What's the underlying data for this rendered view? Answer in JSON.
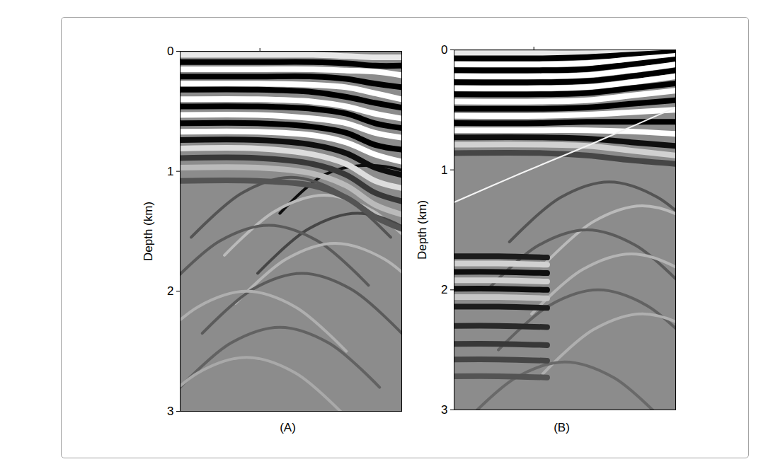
{
  "chart_data": [
    {
      "type": "seismic_section",
      "caption": "(A)",
      "ylabel": "Depth (km)",
      "xlim": [
        0,
        1
      ],
      "xticks": [
        0.36
      ],
      "ylim": [
        0,
        3
      ],
      "yticks": [
        0,
        1,
        2,
        3
      ],
      "tick_labels": "y",
      "reflectors": [
        {
          "x": [
            0,
            0.35,
            0.6,
            0.75,
            0.88,
            1
          ],
          "depth": [
            0.03,
            0.03,
            0.03,
            0.04,
            0.05,
            0.05
          ],
          "amplitude": -0.8
        },
        {
          "x": [
            0,
            0.35,
            0.6,
            0.75,
            0.88,
            1
          ],
          "depth": [
            0.09,
            0.09,
            0.09,
            0.1,
            0.12,
            0.12
          ],
          "amplitude": 1
        },
        {
          "x": [
            0,
            0.35,
            0.6,
            0.75,
            0.88,
            1
          ],
          "depth": [
            0.15,
            0.15,
            0.15,
            0.16,
            0.17,
            0.2
          ],
          "amplitude": -1
        },
        {
          "x": [
            0,
            0.35,
            0.6,
            0.75,
            0.88,
            1
          ],
          "depth": [
            0.21,
            0.21,
            0.21,
            0.23,
            0.27,
            0.3
          ],
          "amplitude": 1
        },
        {
          "x": [
            0,
            0.35,
            0.6,
            0.75,
            0.88,
            1
          ],
          "depth": [
            0.27,
            0.27,
            0.28,
            0.3,
            0.35,
            0.4
          ],
          "amplitude": -1
        },
        {
          "x": [
            0,
            0.35,
            0.6,
            0.75,
            0.88,
            1
          ],
          "depth": [
            0.32,
            0.32,
            0.34,
            0.38,
            0.43,
            0.47
          ],
          "amplitude": 1
        },
        {
          "x": [
            0,
            0.35,
            0.6,
            0.75,
            0.88,
            1
          ],
          "depth": [
            0.4,
            0.4,
            0.42,
            0.46,
            0.52,
            0.56
          ],
          "amplitude": -1
        },
        {
          "x": [
            0,
            0.35,
            0.6,
            0.75,
            0.88,
            1
          ],
          "depth": [
            0.46,
            0.46,
            0.48,
            0.52,
            0.6,
            0.64
          ],
          "amplitude": 1
        },
        {
          "x": [
            0,
            0.35,
            0.6,
            0.75,
            0.88,
            1
          ],
          "depth": [
            0.53,
            0.53,
            0.56,
            0.6,
            0.68,
            0.72
          ],
          "amplitude": -1
        },
        {
          "x": [
            0,
            0.35,
            0.6,
            0.75,
            0.88,
            1
          ],
          "depth": [
            0.6,
            0.6,
            0.63,
            0.68,
            0.78,
            0.82
          ],
          "amplitude": 1
        },
        {
          "x": [
            0,
            0.35,
            0.6,
            0.75,
            0.88,
            1
          ],
          "depth": [
            0.67,
            0.67,
            0.7,
            0.76,
            0.86,
            0.92
          ],
          "amplitude": -1
        },
        {
          "x": [
            0,
            0.35,
            0.6,
            0.75,
            0.88,
            1
          ],
          "depth": [
            0.74,
            0.74,
            0.78,
            0.85,
            0.97,
            1.03
          ],
          "amplitude": 0.9
        },
        {
          "x": [
            0,
            0.35,
            0.6,
            0.75,
            0.88,
            1
          ],
          "depth": [
            0.81,
            0.81,
            0.86,
            0.94,
            1.08,
            1.14
          ],
          "amplitude": -0.7
        },
        {
          "x": [
            0,
            0.35,
            0.6,
            0.75,
            0.88,
            1
          ],
          "depth": [
            0.89,
            0.89,
            0.94,
            1.03,
            1.18,
            1.25
          ],
          "amplitude": 0.6
        },
        {
          "x": [
            0,
            0.35,
            0.6,
            0.75,
            0.88,
            1
          ],
          "depth": [
            0.97,
            0.97,
            1.02,
            1.12,
            1.28,
            1.36
          ],
          "amplitude": -0.4
        },
        {
          "x": [
            0,
            0.35,
            0.6,
            0.75,
            0.88,
            1
          ],
          "depth": [
            1.08,
            1.08,
            1.12,
            1.22,
            1.38,
            1.48
          ],
          "amplitude": 0.4
        }
      ],
      "diffractions": [
        {
          "x": [
            0.45,
            0.65,
            0.85,
            1.05,
            1.25
          ],
          "depth": [
            1.35,
            1.03,
            0.95,
            1.03,
            1.35
          ],
          "amplitude": 0.9
        },
        {
          "x": [
            0.05,
            0.28,
            0.5,
            0.72,
            0.95
          ],
          "depth": [
            1.55,
            1.18,
            1.05,
            1.18,
            1.55
          ],
          "amplitude": 0.4
        },
        {
          "x": [
            0.2,
            0.43,
            0.65,
            0.87,
            1.1
          ],
          "depth": [
            1.7,
            1.33,
            1.2,
            1.33,
            1.7
          ],
          "amplitude": -0.4
        },
        {
          "x": [
            0.35,
            0.58,
            0.8,
            1.02,
            1.25
          ],
          "depth": [
            1.85,
            1.48,
            1.35,
            1.48,
            1.85
          ],
          "amplitude": 0.5
        },
        {
          "x": [
            -0.05,
            0.18,
            0.4,
            0.62,
            0.85
          ],
          "depth": [
            1.95,
            1.58,
            1.45,
            1.58,
            1.95
          ],
          "amplitude": 0.35
        },
        {
          "x": [
            0.25,
            0.48,
            0.7,
            0.92,
            1.15
          ],
          "depth": [
            2.1,
            1.73,
            1.6,
            1.73,
            2.1
          ],
          "amplitude": -0.35
        },
        {
          "x": [
            0.1,
            0.33,
            0.55,
            0.77,
            1.0
          ],
          "depth": [
            2.35,
            1.98,
            1.85,
            1.98,
            2.35
          ],
          "amplitude": 0.35
        },
        {
          "x": [
            -0.15,
            0.08,
            0.3,
            0.52,
            0.75
          ],
          "depth": [
            2.5,
            2.13,
            2.0,
            2.13,
            2.5
          ],
          "amplitude": -0.3
        },
        {
          "x": [
            0.0,
            0.23,
            0.45,
            0.67,
            0.9
          ],
          "depth": [
            2.8,
            2.43,
            2.3,
            2.43,
            2.8
          ],
          "amplitude": 0.3
        },
        {
          "x": [
            -0.15,
            0.08,
            0.3,
            0.52,
            0.75
          ],
          "depth": [
            3.05,
            2.68,
            2.55,
            2.68,
            3.05
          ],
          "amplitude": -0.25
        }
      ],
      "crossing_events": []
    },
    {
      "type": "seismic_section",
      "caption": "(B)",
      "ylabel": "Depth (km)",
      "xlim": [
        0,
        1
      ],
      "xticks": [
        0.36
      ],
      "ylim": [
        0,
        3
      ],
      "yticks": [
        0,
        1,
        2,
        3
      ],
      "tick_labels": "y",
      "reflectors": [
        {
          "x": [
            0,
            0.4,
            0.6,
            0.8,
            1
          ],
          "depth": [
            0.03,
            0.03,
            0.03,
            0.02,
            0.01
          ],
          "amplitude": -0.8
        },
        {
          "x": [
            0,
            0.4,
            0.6,
            0.8,
            1
          ],
          "depth": [
            0.07,
            0.07,
            0.06,
            0.04,
            0.02
          ],
          "amplitude": 1
        },
        {
          "x": [
            0,
            0.4,
            0.6,
            0.8,
            1
          ],
          "depth": [
            0.12,
            0.12,
            0.11,
            0.08,
            0.05
          ],
          "amplitude": -1
        },
        {
          "x": [
            0,
            0.4,
            0.6,
            0.8,
            1
          ],
          "depth": [
            0.17,
            0.17,
            0.16,
            0.12,
            0.08
          ],
          "amplitude": 1
        },
        {
          "x": [
            0,
            0.4,
            0.6,
            0.8,
            1
          ],
          "depth": [
            0.22,
            0.22,
            0.21,
            0.17,
            0.12
          ],
          "amplitude": -1
        },
        {
          "x": [
            0,
            0.4,
            0.6,
            0.8,
            1
          ],
          "depth": [
            0.27,
            0.27,
            0.26,
            0.22,
            0.17
          ],
          "amplitude": 1
        },
        {
          "x": [
            0,
            0.4,
            0.6,
            0.8,
            1
          ],
          "depth": [
            0.32,
            0.32,
            0.31,
            0.27,
            0.22
          ],
          "amplitude": -1
        },
        {
          "x": [
            0,
            0.4,
            0.6,
            0.8,
            1
          ],
          "depth": [
            0.37,
            0.37,
            0.36,
            0.32,
            0.28
          ],
          "amplitude": 1
        },
        {
          "x": [
            0,
            0.4,
            0.6,
            0.8,
            1
          ],
          "depth": [
            0.43,
            0.43,
            0.42,
            0.38,
            0.34
          ],
          "amplitude": -1
        },
        {
          "x": [
            0,
            0.4,
            0.6,
            0.8,
            1
          ],
          "depth": [
            0.49,
            0.49,
            0.48,
            0.45,
            0.42
          ],
          "amplitude": 1
        },
        {
          "x": [
            0,
            0.4,
            0.6,
            0.8,
            1
          ],
          "depth": [
            0.55,
            0.55,
            0.54,
            0.52,
            0.5
          ],
          "amplitude": -1
        },
        {
          "x": [
            0,
            0.4,
            0.6,
            0.8,
            1
          ],
          "depth": [
            0.61,
            0.61,
            0.6,
            0.6,
            0.6
          ],
          "amplitude": 1
        },
        {
          "x": [
            0,
            0.4,
            0.6,
            0.8,
            1
          ],
          "depth": [
            0.67,
            0.67,
            0.67,
            0.68,
            0.7
          ],
          "amplitude": -1
        },
        {
          "x": [
            0,
            0.4,
            0.6,
            0.8,
            1
          ],
          "depth": [
            0.73,
            0.73,
            0.74,
            0.77,
            0.8
          ],
          "amplitude": 0.9
        },
        {
          "x": [
            0,
            0.4,
            0.6,
            0.8,
            1
          ],
          "depth": [
            0.79,
            0.79,
            0.8,
            0.84,
            0.88
          ],
          "amplitude": -0.6
        },
        {
          "x": [
            0,
            0.4,
            0.6,
            0.8,
            1
          ],
          "depth": [
            0.86,
            0.86,
            0.88,
            0.92,
            0.95
          ],
          "amplitude": 0.5
        },
        {
          "x": [
            0,
            0.2,
            0.42
          ],
          "depth": [
            1.72,
            1.72,
            1.73
          ],
          "amplitude": 0.8
        },
        {
          "x": [
            0,
            0.2,
            0.42
          ],
          "depth": [
            1.78,
            1.78,
            1.79
          ],
          "amplitude": -0.6
        },
        {
          "x": [
            0,
            0.2,
            0.42
          ],
          "depth": [
            1.85,
            1.85,
            1.86
          ],
          "amplitude": 0.9
        },
        {
          "x": [
            0,
            0.2,
            0.42
          ],
          "depth": [
            1.92,
            1.92,
            1.93
          ],
          "amplitude": -0.6
        },
        {
          "x": [
            0,
            0.2,
            0.42
          ],
          "depth": [
            1.99,
            1.99,
            2.0
          ],
          "amplitude": 0.9
        },
        {
          "x": [
            0,
            0.2,
            0.42
          ],
          "depth": [
            2.06,
            2.06,
            2.07
          ],
          "amplitude": -0.5
        },
        {
          "x": [
            0,
            0.2,
            0.42
          ],
          "depth": [
            2.14,
            2.14,
            2.15
          ],
          "amplitude": 0.8
        },
        {
          "x": [
            0,
            0.2,
            0.42
          ],
          "depth": [
            2.3,
            2.3,
            2.31
          ],
          "amplitude": 0.7
        },
        {
          "x": [
            0,
            0.2,
            0.42
          ],
          "depth": [
            2.45,
            2.45,
            2.46
          ],
          "amplitude": 0.6
        },
        {
          "x": [
            0,
            0.2,
            0.42
          ],
          "depth": [
            2.58,
            2.58,
            2.59
          ],
          "amplitude": 0.5
        },
        {
          "x": [
            0,
            0.2,
            0.42
          ],
          "depth": [
            2.72,
            2.72,
            2.73
          ],
          "amplitude": 0.4
        }
      ],
      "diffractions": [
        {
          "x": [
            0.25,
            0.48,
            0.7,
            0.92,
            1.15
          ],
          "depth": [
            1.6,
            1.23,
            1.1,
            1.23,
            1.6
          ],
          "amplitude": 0.4
        },
        {
          "x": [
            0.4,
            0.63,
            0.85,
            1.07,
            1.3
          ],
          "depth": [
            1.8,
            1.43,
            1.3,
            1.43,
            1.8
          ],
          "amplitude": -0.4
        },
        {
          "x": [
            0.15,
            0.38,
            0.6,
            0.82,
            1.05
          ],
          "depth": [
            2.0,
            1.63,
            1.5,
            1.63,
            2.0
          ],
          "amplitude": 0.35
        },
        {
          "x": [
            0.35,
            0.58,
            0.8,
            1.02,
            1.25
          ],
          "depth": [
            2.2,
            1.83,
            1.7,
            1.83,
            2.2
          ],
          "amplitude": -0.35
        },
        {
          "x": [
            0.2,
            0.43,
            0.65,
            0.87,
            1.1
          ],
          "depth": [
            2.5,
            2.13,
            2.0,
            2.13,
            2.5
          ],
          "amplitude": 0.3
        },
        {
          "x": [
            0.4,
            0.63,
            0.85,
            1.07,
            1.3
          ],
          "depth": [
            2.7,
            2.33,
            2.2,
            2.33,
            2.7
          ],
          "amplitude": -0.3
        },
        {
          "x": [
            0.05,
            0.28,
            0.5,
            0.72,
            0.95
          ],
          "depth": [
            3.1,
            2.73,
            2.6,
            2.73,
            3.1
          ],
          "amplitude": 0.25
        }
      ],
      "crossing_events": [
        {
          "x": [
            0,
            0.3,
            0.6,
            0.85,
            1
          ],
          "depth": [
            1.27,
            1.03,
            0.8,
            0.6,
            0.48
          ],
          "amplitude": -0.9
        }
      ]
    }
  ]
}
